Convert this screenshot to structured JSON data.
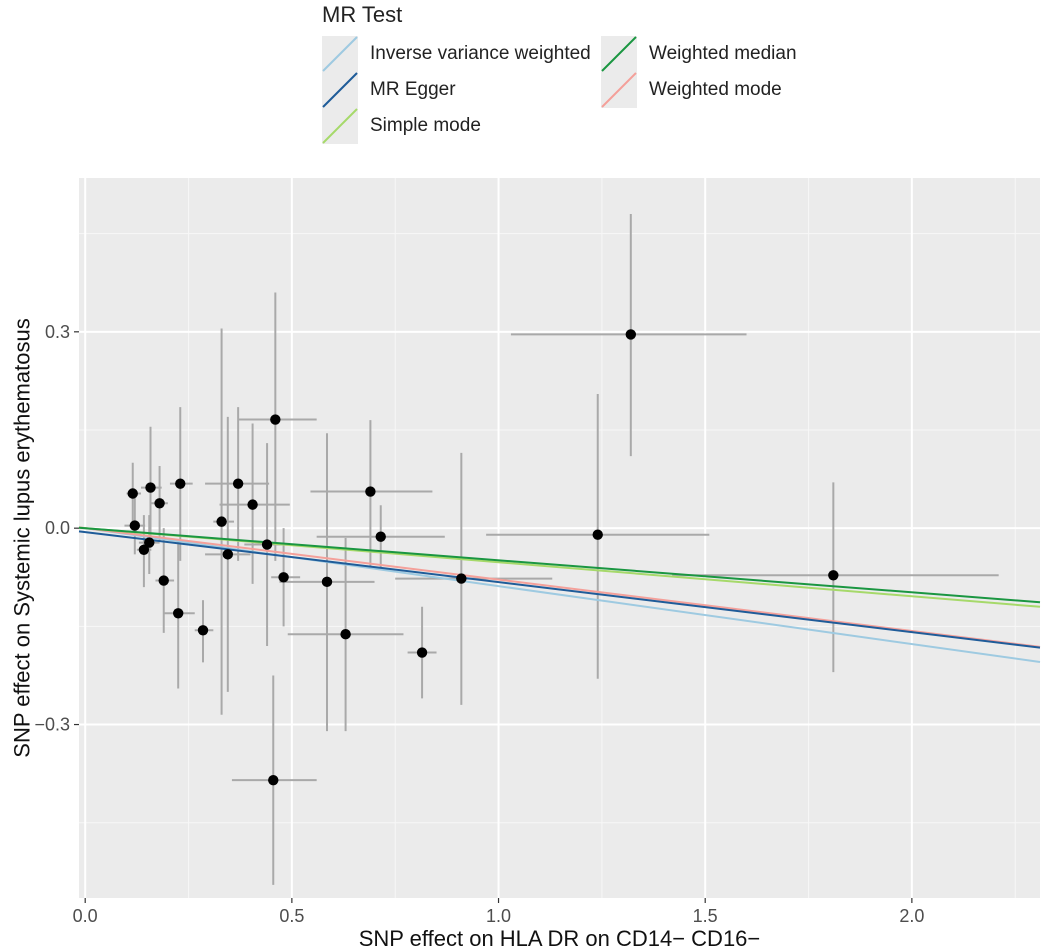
{
  "chart_data": {
    "type": "scatter",
    "title": "",
    "xlabel": "SNP effect on HLA DR on CD14− CD16−",
    "ylabel": "SNP effect on Systemic lupus erythematosus",
    "xlim": [
      -0.015,
      2.31
    ],
    "ylim": [
      -0.565,
      0.535
    ],
    "x_ticks": [
      0.0,
      0.5,
      1.0,
      1.5,
      2.0
    ],
    "x_tick_labels": [
      "0.0",
      "0.5",
      "1.0",
      "1.5",
      "2.0"
    ],
    "y_ticks": [
      -0.3,
      0.0,
      0.3
    ],
    "y_tick_labels": [
      "−0.3",
      "0.0",
      "0.3"
    ],
    "grid": true,
    "legend": {
      "title": "MR Test",
      "placement": "top",
      "entries": [
        {
          "name": "Inverse variance weighted",
          "color": "#9ecae1"
        },
        {
          "name": "MR Egger",
          "color": "#1f5c99"
        },
        {
          "name": "Simple mode",
          "color": "#a6d96a"
        },
        {
          "name": "Weighted median",
          "color": "#1a9641"
        },
        {
          "name": "Weighted mode",
          "color": "#f4a09a"
        }
      ]
    },
    "lines": [
      {
        "name": "Inverse variance weighted",
        "intercept": 0.0,
        "slope": -0.0885,
        "color": "#9ecae1"
      },
      {
        "name": "Weighted mode",
        "intercept": 0.0,
        "slope": -0.0785,
        "color": "#f4a09a"
      },
      {
        "name": "MR Egger",
        "intercept": -0.006,
        "slope": -0.0764,
        "color": "#1f5c99"
      },
      {
        "name": "Simple mode",
        "intercept": 0.0,
        "slope": -0.052,
        "color": "#a6d96a"
      },
      {
        "name": "Weighted median",
        "intercept": 0.0,
        "slope": -0.049,
        "color": "#1a9641"
      }
    ],
    "points": [
      {
        "x": 0.115,
        "y": 0.053,
        "xlo": 0.1,
        "xhi": 0.135,
        "ylo": 0.005,
        "yhi": 0.1
      },
      {
        "x": 0.12,
        "y": 0.004,
        "xlo": 0.095,
        "xhi": 0.145,
        "ylo": -0.04,
        "yhi": 0.05
      },
      {
        "x": 0.142,
        "y": -0.033,
        "xlo": 0.125,
        "xhi": 0.16,
        "ylo": -0.09,
        "yhi": 0.02
      },
      {
        "x": 0.155,
        "y": -0.022,
        "xlo": 0.13,
        "xhi": 0.18,
        "ylo": -0.07,
        "yhi": 0.02
      },
      {
        "x": 0.158,
        "y": 0.062,
        "xlo": 0.135,
        "xhi": 0.185,
        "ylo": -0.03,
        "yhi": 0.155
      },
      {
        "x": 0.18,
        "y": 0.038,
        "xlo": 0.16,
        "xhi": 0.2,
        "ylo": -0.02,
        "yhi": 0.095
      },
      {
        "x": 0.19,
        "y": -0.08,
        "xlo": 0.17,
        "xhi": 0.215,
        "ylo": -0.16,
        "yhi": 0.0
      },
      {
        "x": 0.225,
        "y": -0.13,
        "xlo": 0.19,
        "xhi": 0.265,
        "ylo": -0.245,
        "yhi": -0.02
      },
      {
        "x": 0.23,
        "y": 0.068,
        "xlo": 0.205,
        "xhi": 0.26,
        "ylo": -0.05,
        "yhi": 0.185
      },
      {
        "x": 0.285,
        "y": -0.156,
        "xlo": 0.265,
        "xhi": 0.31,
        "ylo": -0.205,
        "yhi": -0.11
      },
      {
        "x": 0.33,
        "y": 0.01,
        "xlo": 0.31,
        "xhi": 0.36,
        "ylo": -0.285,
        "yhi": 0.305
      },
      {
        "x": 0.345,
        "y": -0.04,
        "xlo": 0.29,
        "xhi": 0.4,
        "ylo": -0.25,
        "yhi": 0.17
      },
      {
        "x": 0.37,
        "y": 0.068,
        "xlo": 0.29,
        "xhi": 0.445,
        "ylo": -0.05,
        "yhi": 0.185
      },
      {
        "x": 0.405,
        "y": 0.036,
        "xlo": 0.325,
        "xhi": 0.495,
        "ylo": -0.085,
        "yhi": 0.16
      },
      {
        "x": 0.44,
        "y": -0.025,
        "xlo": 0.385,
        "xhi": 0.49,
        "ylo": -0.18,
        "yhi": 0.13
      },
      {
        "x": 0.455,
        "y": -0.385,
        "xlo": 0.355,
        "xhi": 0.56,
        "ylo": -0.545,
        "yhi": -0.225
      },
      {
        "x": 0.46,
        "y": 0.166,
        "xlo": 0.37,
        "xhi": 0.56,
        "ylo": -0.05,
        "yhi": 0.36
      },
      {
        "x": 0.48,
        "y": -0.075,
        "xlo": 0.45,
        "xhi": 0.52,
        "ylo": -0.15,
        "yhi": 0.0
      },
      {
        "x": 0.585,
        "y": -0.082,
        "xlo": 0.47,
        "xhi": 0.7,
        "ylo": -0.31,
        "yhi": 0.145
      },
      {
        "x": 0.63,
        "y": -0.162,
        "xlo": 0.49,
        "xhi": 0.77,
        "ylo": -0.31,
        "yhi": -0.015
      },
      {
        "x": 0.69,
        "y": 0.056,
        "xlo": 0.545,
        "xhi": 0.84,
        "ylo": -0.06,
        "yhi": 0.165
      },
      {
        "x": 0.715,
        "y": -0.013,
        "xlo": 0.56,
        "xhi": 0.87,
        "ylo": -0.06,
        "yhi": 0.035
      },
      {
        "x": 0.815,
        "y": -0.19,
        "xlo": 0.78,
        "xhi": 0.85,
        "ylo": -0.26,
        "yhi": -0.12
      },
      {
        "x": 0.91,
        "y": -0.077,
        "xlo": 0.75,
        "xhi": 1.13,
        "ylo": -0.27,
        "yhi": 0.115
      },
      {
        "x": 1.24,
        "y": -0.01,
        "xlo": 0.97,
        "xhi": 1.51,
        "ylo": -0.23,
        "yhi": 0.205
      },
      {
        "x": 1.32,
        "y": 0.296,
        "xlo": 1.03,
        "xhi": 1.6,
        "ylo": 0.11,
        "yhi": 0.48
      },
      {
        "x": 1.81,
        "y": -0.072,
        "xlo": 1.42,
        "xhi": 2.21,
        "ylo": -0.22,
        "yhi": 0.07
      }
    ]
  }
}
